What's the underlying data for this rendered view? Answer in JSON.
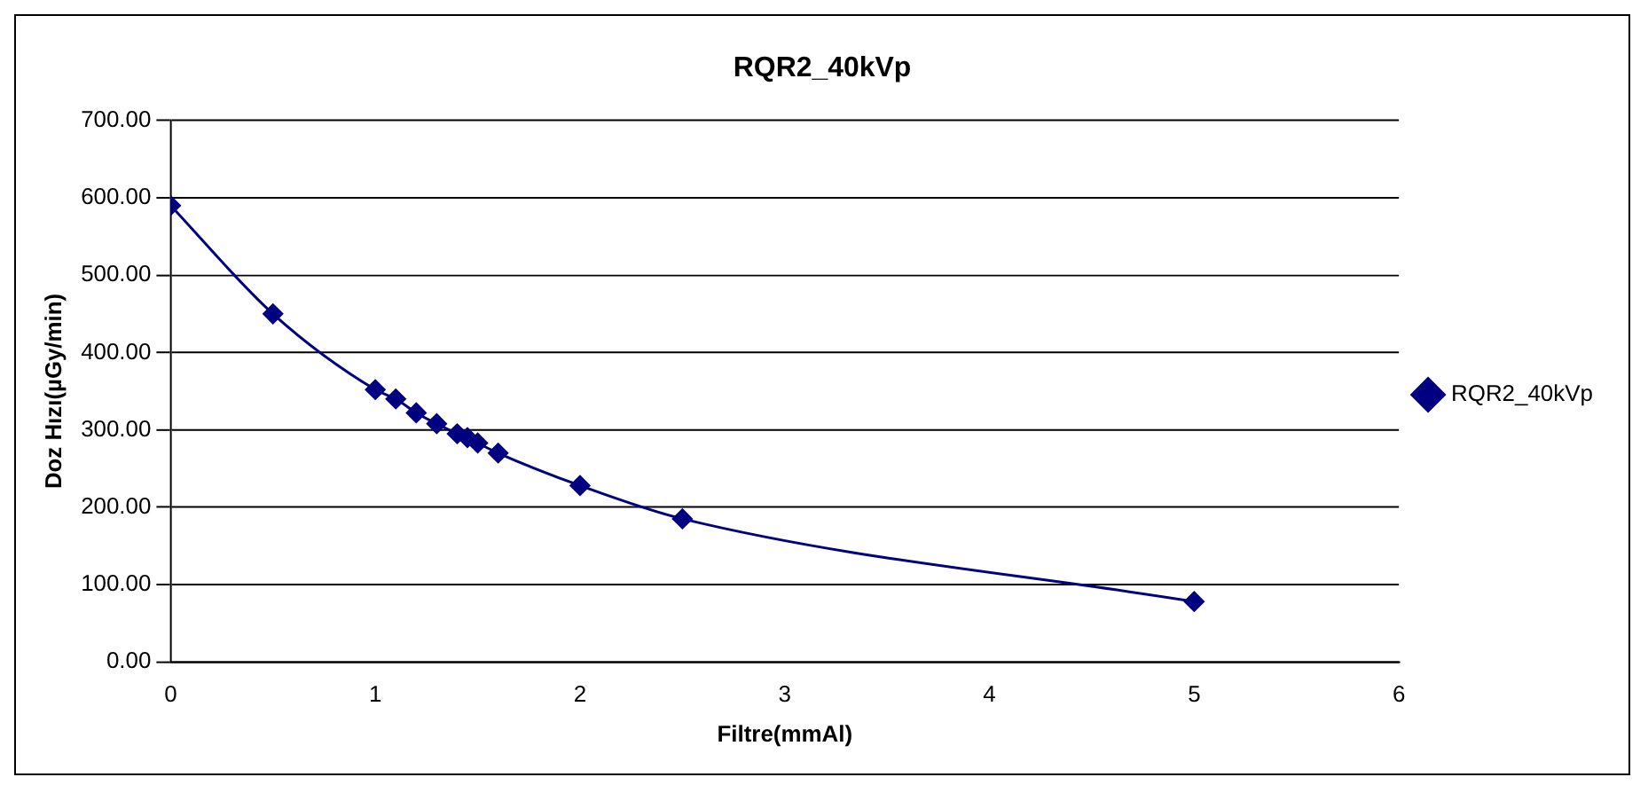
{
  "chart_data": {
    "type": "line",
    "title": "RQR2_40kVp",
    "xlabel": "Filtre(mmAl)",
    "ylabel": "Doz Hızı(µGy/min)",
    "x": [
      0,
      0.5,
      1,
      1.1,
      1.2,
      1.3,
      1.4,
      1.45,
      1.5,
      1.6,
      2,
      2.5,
      5
    ],
    "series": [
      {
        "name": "RQR2_40kVp",
        "color": "#000080",
        "values": [
          590,
          450,
          352,
          340,
          322,
          308,
          295,
          290,
          283,
          270,
          228,
          185,
          78
        ]
      }
    ],
    "xlim": [
      0,
      6
    ],
    "xticks": [
      0,
      1,
      2,
      3,
      4,
      5,
      6
    ],
    "ylim": [
      0,
      700
    ],
    "yticks": [
      {
        "value": 0,
        "label": "0.00"
      },
      {
        "value": 100,
        "label": "100.00"
      },
      {
        "value": 200,
        "label": "200.00"
      },
      {
        "value": 300,
        "label": "300.00"
      },
      {
        "value": 400,
        "label": "400.00"
      },
      {
        "value": 500,
        "label": "500.00"
      },
      {
        "value": 600,
        "label": "600.00"
      },
      {
        "value": 700,
        "label": "700.00"
      }
    ],
    "grid": "y",
    "legend": "right",
    "marker": "diamond",
    "line_style": "solid"
  }
}
